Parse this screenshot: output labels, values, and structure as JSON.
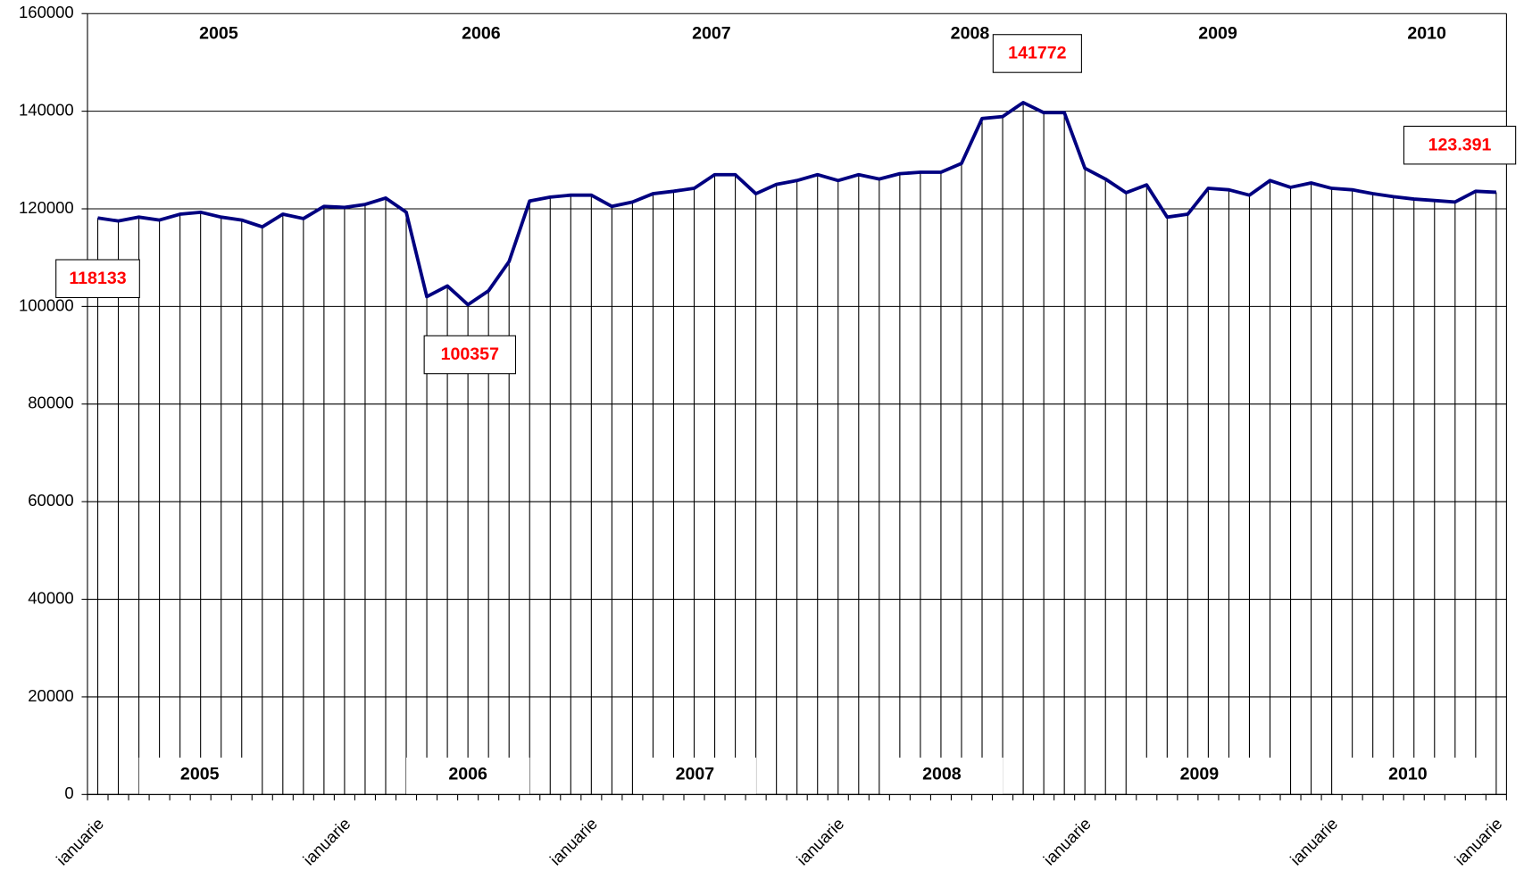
{
  "chart_data": {
    "type": "line",
    "categories": [
      "ianuarie",
      null,
      null,
      null,
      null,
      null,
      null,
      null,
      null,
      null,
      null,
      null,
      "ianuarie",
      null,
      null,
      null,
      null,
      null,
      null,
      null,
      null,
      null,
      null,
      null,
      "ianuarie",
      null,
      null,
      null,
      null,
      null,
      null,
      null,
      null,
      null,
      null,
      null,
      "ianuarie",
      null,
      null,
      null,
      null,
      null,
      null,
      null,
      null,
      null,
      null,
      null,
      "ianuarie",
      null,
      null,
      null,
      null,
      null,
      null,
      null,
      null,
      null,
      null,
      null,
      "ianuarie",
      null,
      null,
      null,
      null,
      null,
      null,
      null,
      "ianuarie"
    ],
    "series": [
      {
        "color": "#000080",
        "values": [
          118133,
          117500,
          118300,
          117700,
          118900,
          119300,
          118300,
          117700,
          116300,
          118900,
          118000,
          120500,
          120300,
          120900,
          122200,
          119300,
          102000,
          104200,
          100357,
          103200,
          109200,
          121600,
          122400,
          122800,
          122800,
          120500,
          121400,
          123100,
          123600,
          124200,
          127000,
          127000,
          123100,
          125000,
          125800,
          127000,
          125800,
          127000,
          126100,
          127200,
          127500,
          127500,
          129300,
          138500,
          138900,
          141772,
          139700,
          139700,
          128300,
          126100,
          123300,
          124900,
          118300,
          118900,
          124200,
          123900,
          122800,
          125800,
          124400,
          125300,
          124200,
          123900,
          123100,
          122500,
          122000,
          121700,
          121400,
          123600,
          123391
        ],
        "value_labels": [
          "118133",
          null,
          null,
          null,
          null,
          null,
          null,
          null,
          null,
          null,
          null,
          null,
          null,
          null,
          null,
          null,
          null,
          null,
          "100357",
          null,
          null,
          null,
          null,
          null,
          null,
          null,
          null,
          null,
          null,
          null,
          null,
          null,
          null,
          null,
          null,
          null,
          null,
          null,
          null,
          null,
          null,
          null,
          null,
          null,
          null,
          "141772",
          null,
          null,
          null,
          null,
          null,
          null,
          null,
          null,
          null,
          null,
          null,
          null,
          null,
          null,
          null,
          null,
          null,
          null,
          null,
          null,
          null,
          null,
          "123.391"
        ]
      }
    ],
    "ylim": [
      0,
      160000
    ],
    "yticks": [
      0,
      20000,
      40000,
      60000,
      80000,
      100000,
      120000,
      140000,
      160000
    ],
    "grid": true,
    "annotations": {
      "top": [
        "2005",
        "2006",
        "2007",
        "2008",
        "2009",
        "2010"
      ],
      "bottom": [
        "2005",
        "2006",
        "2007",
        "2008",
        "2009",
        "2010"
      ]
    }
  }
}
